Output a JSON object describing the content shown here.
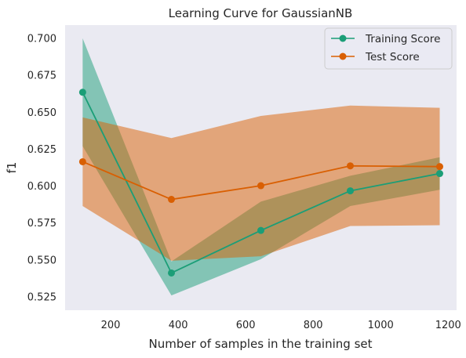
{
  "chart_data": {
    "type": "line",
    "title": "Learning Curve for GaussianNB",
    "xlabel": "Number of samples in the training set",
    "ylabel": "f1",
    "xlim": [
      65,
      1225
    ],
    "ylim": [
      0.516,
      0.709
    ],
    "xticks": [
      200,
      400,
      600,
      800,
      1000,
      1200
    ],
    "yticks": [
      0.525,
      0.55,
      0.575,
      0.6,
      0.625,
      0.65,
      0.675,
      0.7
    ],
    "ytick_labels": [
      "0.525",
      "0.550",
      "0.575",
      "0.600",
      "0.625",
      "0.650",
      "0.675",
      "0.700"
    ],
    "grid": false,
    "legend_position": "top-right",
    "background": "#eaeaf2",
    "x": [
      117,
      380,
      645,
      910,
      1175
    ],
    "series": [
      {
        "name": "Training Score",
        "color": "#1b9e77",
        "values": [
          0.6635,
          0.5412,
          0.57,
          0.5968,
          0.6085
        ],
        "band_lower": [
          0.627,
          0.526,
          0.5505,
          0.5865,
          0.5975
        ],
        "band_upper": [
          0.7,
          0.549,
          0.5895,
          0.607,
          0.6195
        ]
      },
      {
        "name": "Test Score",
        "color": "#d95f02",
        "values": [
          0.6165,
          0.591,
          0.6003,
          0.6137,
          0.6132
        ],
        "band_lower": [
          0.5865,
          0.5495,
          0.5525,
          0.573,
          0.5735
        ],
        "band_upper": [
          0.6465,
          0.6325,
          0.6475,
          0.6545,
          0.653
        ]
      }
    ]
  }
}
